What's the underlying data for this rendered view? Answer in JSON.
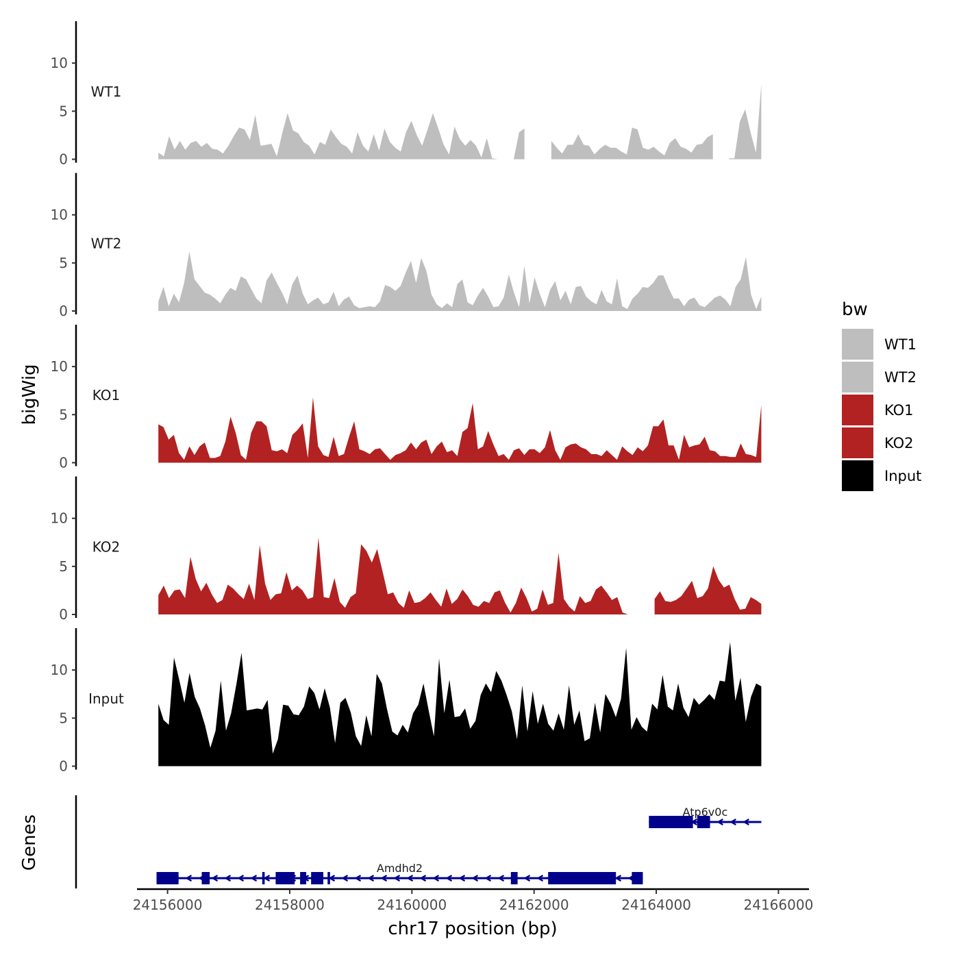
{
  "chart_data": {
    "type": "area",
    "chromosome": "chr17",
    "xlabel": "chr17 position (bp)",
    "ylabel_tracks": "bigWig",
    "ylabel_genes": "Genes",
    "xlim": [
      24155500,
      24166500
    ],
    "xticks": [
      24156000,
      24158000,
      24160000,
      24162000,
      24164000,
      24166000
    ],
    "xtick_labels": [
      "24156000",
      "24158000",
      "24160000",
      "24162000",
      "24164000",
      "24166000"
    ],
    "ylim": [
      0,
      14
    ],
    "yticks": [
      0,
      5,
      10
    ],
    "ytick_labels": [
      "0",
      "5",
      "10"
    ],
    "legend": {
      "title": "bw",
      "position": "right",
      "entries": [
        {
          "label": "WT1",
          "color": "#bebebe"
        },
        {
          "label": "WT2",
          "color": "#bebebe"
        },
        {
          "label": "KO1",
          "color": "#b22222"
        },
        {
          "label": "KO2",
          "color": "#b22222"
        },
        {
          "label": "Input",
          "color": "#000000"
        }
      ]
    },
    "series": [
      {
        "name": "WT1",
        "color": "#bebebe",
        "x_start": 24155850,
        "x_end": 24165720,
        "gaps": [
          [
            24161900,
            24162250
          ],
          [
            24165000,
            24165150
          ]
        ],
        "values": [
          0.7,
          0.3,
          2.4,
          1,
          1.9,
          1,
          1.7,
          1.9,
          1.3,
          1.7,
          1.1,
          1,
          0.6,
          1.4,
          2.4,
          3.3,
          3.1,
          2,
          4.6,
          1.4,
          1.5,
          1.6,
          0.3,
          2.7,
          4.8,
          3,
          2.7,
          1.8,
          1.4,
          0.5,
          1.8,
          1.5,
          3.1,
          2.3,
          1.6,
          1.3,
          0.6,
          2.8,
          1.4,
          0.8,
          2.6,
          0.9,
          3.2,
          1.8,
          1.2,
          0.8,
          2.8,
          4,
          2.5,
          1.4,
          3.1,
          4.8,
          3.2,
          1.5,
          0.5,
          3.4,
          2.1,
          1.4,
          2,
          1.4,
          0.2,
          2.2,
          0.1,
          0,
          0,
          0,
          0,
          2.8,
          3.2,
          1.6,
          1.5,
          2,
          1.1,
          1.9,
          1.2,
          0.6,
          1.5,
          1.5,
          2.6,
          1.5,
          1.4,
          0.5,
          1.1,
          1.5,
          1.2,
          1.2,
          0.8,
          0.5,
          3.3,
          3.1,
          1.2,
          1,
          1.3,
          0.8,
          0.4,
          1.7,
          2.2,
          1.3,
          1.1,
          0.7,
          1.5,
          1.6,
          2.3,
          2.6,
          1.8,
          0.2,
          0.1,
          0.1,
          3.9,
          5.2,
          2.8,
          0.7,
          7.8
        ]
      },
      {
        "name": "WT2",
        "color": "#bebebe",
        "x_start": 24155850,
        "x_end": 24165720,
        "gaps": [],
        "values": [
          1,
          2.5,
          0.5,
          1.8,
          0.9,
          2.9,
          6.2,
          3.3,
          2.6,
          1.9,
          1.7,
          1.3,
          0.8,
          1.7,
          2.4,
          2.1,
          3.6,
          3.3,
          2.3,
          1.3,
          0.8,
          3.2,
          4,
          2.9,
          1.9,
          0.7,
          2.8,
          3.7,
          1.8,
          0.7,
          1.1,
          1.4,
          0.7,
          0.9,
          2,
          0.5,
          1.2,
          1.5,
          0.6,
          0.3,
          0.4,
          0.5,
          0.4,
          1,
          2.7,
          2.5,
          2.1,
          2.6,
          4,
          5.2,
          2.9,
          5.5,
          4.2,
          1.7,
          0.7,
          0.3,
          0.8,
          0.4,
          2.8,
          3.3,
          0.9,
          0.6,
          1.6,
          2.4,
          1.5,
          0.4,
          0.5,
          1.4,
          3.8,
          1.9,
          0.4,
          4.7,
          0.8,
          3.5,
          1.8,
          0.4,
          2.2,
          3.1,
          1.1,
          2.1,
          0.7,
          2.5,
          2.6,
          1.5,
          1,
          0.7,
          2.2,
          1,
          0.7,
          3.4,
          0.5,
          0.2,
          1.3,
          1.8,
          2.5,
          2.4,
          2.9,
          3.7,
          3.7,
          2.4,
          1.3,
          1.3,
          0.5,
          1.2,
          1.4,
          0.6,
          0.4,
          0.9,
          1.4,
          1.6,
          1.2,
          0.5,
          2.5,
          3.3,
          5.6,
          1.7,
          0.2,
          1.5
        ]
      },
      {
        "name": "KO1",
        "color": "#b22222",
        "x_start": 24155850,
        "x_end": 24165720,
        "gaps": [],
        "values": [
          4,
          3.7,
          2.4,
          2.9,
          1,
          0.3,
          1.7,
          0.8,
          1.7,
          2.1,
          0.5,
          0.5,
          0.7,
          2.2,
          4.8,
          3.1,
          0.8,
          0.3,
          3.1,
          4.3,
          4.3,
          3.8,
          1.3,
          1.2,
          1.4,
          1,
          2.9,
          3.4,
          4.1,
          0.5,
          6.8,
          1.7,
          0.8,
          0.6,
          2.7,
          0.7,
          0.9,
          2.7,
          4.3,
          1.4,
          1.2,
          0.9,
          1.4,
          1.5,
          0.9,
          0.3,
          0.8,
          1,
          1.3,
          2.1,
          1.4,
          2.1,
          2.4,
          0.9,
          1.7,
          2.2,
          1.1,
          1.3,
          0.7,
          3.2,
          3.6,
          6.2,
          1.4,
          1.7,
          3.3,
          1.9,
          0.7,
          0.9,
          0.3,
          1.3,
          1.5,
          0.8,
          1.4,
          1.4,
          1,
          1.6,
          3.4,
          1.3,
          0.3,
          1.6,
          1.9,
          2,
          1.6,
          1.4,
          0.9,
          0.9,
          0.7,
          1.3,
          0.8,
          0.3,
          1.7,
          1.2,
          0.8,
          1.6,
          1.2,
          1.8,
          3.8,
          3.8,
          4.5,
          1.8,
          1.8,
          0.3,
          2.9,
          1.6,
          1.8,
          1.9,
          2.7,
          1.3,
          1.2,
          0.7,
          0.7,
          0.6,
          0.6,
          2,
          0.9,
          0.8,
          0.6,
          6
        ]
      },
      {
        "name": "KO2",
        "color": "#b22222",
        "x_start": 24155850,
        "x_end": 24165720,
        "gaps": [
          [
            24163750,
            24163920
          ]
        ],
        "values": [
          2,
          3,
          1.7,
          2.5,
          2.6,
          1.7,
          6,
          3.7,
          2.4,
          3.3,
          2.1,
          1.2,
          1.5,
          3.1,
          2.7,
          2.1,
          1.6,
          3.2,
          1.5,
          7.2,
          3.2,
          1.5,
          2.1,
          2.2,
          4.4,
          2.5,
          3,
          2.5,
          1.6,
          1.8,
          8,
          1.8,
          1.7,
          3.8,
          1.3,
          0.7,
          1.8,
          2.2,
          7.3,
          6.6,
          5.4,
          6.8,
          4.5,
          2.1,
          2.3,
          1.2,
          0.7,
          2.5,
          1.2,
          1.3,
          1.7,
          2.3,
          1.5,
          0.8,
          2.7,
          1.1,
          1.6,
          2.6,
          1.9,
          1,
          0.8,
          1.4,
          1.2,
          2.3,
          2.5,
          1.2,
          0.2,
          1.2,
          2.8,
          1.7,
          0.3,
          0.6,
          2.6,
          1,
          1.2,
          6.4,
          1.6,
          0.8,
          0.3,
          1.9,
          1.2,
          1.4,
          2.6,
          3,
          2.3,
          1.5,
          1.8,
          0.2,
          0,
          0,
          0,
          2.3,
          1.5,
          1.6,
          2.4,
          1.4,
          1.3,
          1.5,
          1.9,
          2.7,
          3.5,
          1.7,
          1.9,
          2.7,
          5,
          3.6,
          2.8,
          3.1,
          1.6,
          0.5,
          0.6,
          1.8,
          1.5,
          1.1
        ]
      },
      {
        "name": "Input",
        "color": "#000000",
        "x_start": 24155850,
        "x_end": 24165720,
        "gaps": [],
        "values": [
          6.5,
          4.8,
          4.3,
          11.3,
          9,
          6.6,
          9.7,
          7.2,
          6,
          4.2,
          1.9,
          3.7,
          8.9,
          3.7,
          5.5,
          8.5,
          11.8,
          5.8,
          5.9,
          6,
          5.9,
          6.9,
          1.3,
          2.8,
          6.4,
          6.3,
          5.4,
          5.3,
          6.2,
          8.3,
          7.6,
          5.9,
          8.1,
          6.1,
          2.4,
          6.6,
          7.1,
          5.6,
          3.1,
          2.1,
          5.3,
          3.1,
          9.6,
          8.6,
          5.9,
          3.6,
          3.2,
          4.3,
          3.5,
          5.5,
          6.4,
          8.6,
          5.8,
          3.1,
          11.2,
          5.5,
          9,
          5.1,
          5.2,
          6,
          3.9,
          4.7,
          7.4,
          8.6,
          7.7,
          9.9,
          8.9,
          7.4,
          5.7,
          2.8,
          8.4,
          3.6,
          7.8,
          4.4,
          6.5,
          4.4,
          3.7,
          5.5,
          3.8,
          8.4,
          4.3,
          5.8,
          2.6,
          2.9,
          6.6,
          3.5,
          7.5,
          6.5,
          5.1,
          7,
          12.3,
          3.8,
          5.1,
          4.1,
          3.6,
          6.5,
          5.9,
          9.5,
          6.2,
          5.8,
          8.6,
          6.1,
          5.1,
          7.1,
          6.4,
          6.9,
          7.5,
          6.9,
          8.9,
          8.8,
          12.9,
          6.8,
          9.2,
          4.6,
          7.2,
          8.6,
          8.3
        ]
      }
    ],
    "genes": {
      "color": "#00008b",
      "strand": "-",
      "items": [
        {
          "name": "Atp6v0c",
          "row": 1,
          "start": 24163880,
          "end": 24165720,
          "exons": [
            [
              24163880,
              24164600
            ],
            [
              24164670,
              24164880
            ]
          ]
        },
        {
          "name": "Amdhd2",
          "row": 2,
          "start": 24155820,
          "end": 24163780,
          "exons": [
            [
              24155820,
              24156180
            ],
            [
              24156560,
              24156690
            ],
            [
              24157550,
              24157590
            ],
            [
              24157770,
              24158080
            ],
            [
              24158170,
              24158270
            ],
            [
              24158350,
              24158550
            ],
            [
              24158620,
              24158660
            ],
            [
              24161620,
              24161730
            ],
            [
              24162230,
              24163340
            ],
            [
              24163600,
              24163780
            ]
          ]
        }
      ]
    }
  }
}
